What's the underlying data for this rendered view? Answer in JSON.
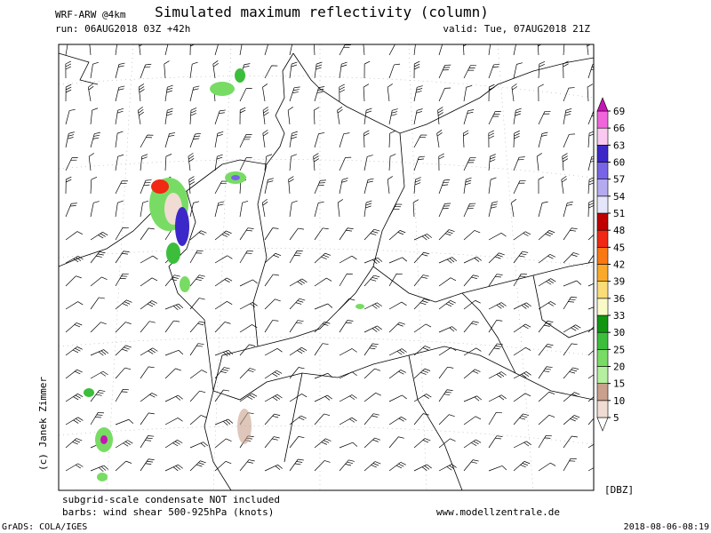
{
  "header": {
    "model": "WRF-ARW @4km",
    "title": "Simulated maximum reflectivity (column)",
    "run": "run: 06AUG2018 03Z +42h",
    "valid": "valid: Tue, 07AUG2018 21Z"
  },
  "legend": {
    "unit": "[DBZ]",
    "levels": [
      5,
      10,
      15,
      20,
      25,
      30,
      33,
      36,
      39,
      42,
      45,
      48,
      51,
      54,
      57,
      60,
      63,
      66,
      69
    ],
    "colors": [
      "#ffffff",
      "#f0dcd2",
      "#c8a08c",
      "#b4f0a0",
      "#78dc64",
      "#3cbe3c",
      "#129612",
      "#fafac8",
      "#fadc78",
      "#faaa28",
      "#fa7814",
      "#f02814",
      "#c00000",
      "#e6e6fa",
      "#b4aaf0",
      "#7864e6",
      "#3c28c8",
      "#fac8f0",
      "#f064dc",
      "#c814b4"
    ]
  },
  "footer": {
    "notes": [
      "subgrid-scale condensate NOT included",
      "barbs: wind shear 500-925hPa (knots)"
    ],
    "website": "www.modellzentrale.de",
    "credit": "(c) Janek Zimmer",
    "software": "GrADS: COLA/IGES",
    "timestamp": "2018-08-06-08:19"
  }
}
